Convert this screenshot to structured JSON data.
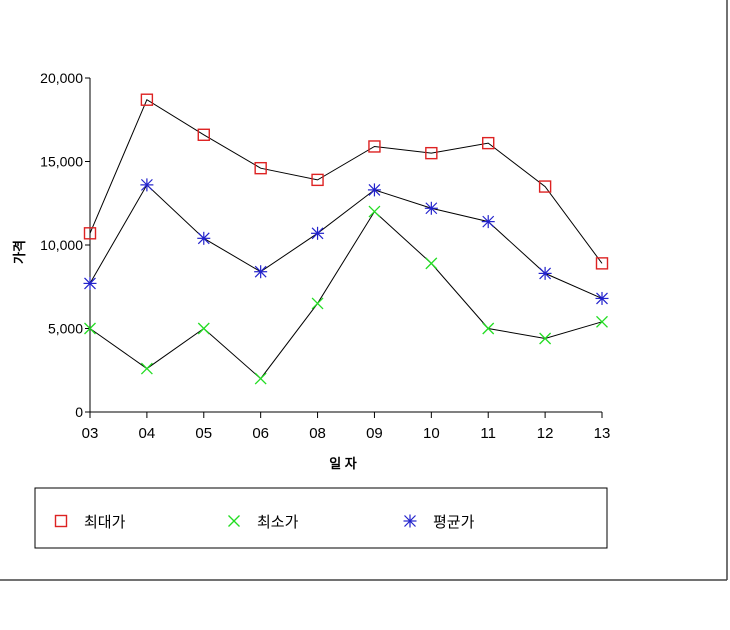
{
  "chart_data": {
    "type": "line",
    "title": "",
    "xlabel": "일 자",
    "ylabel": "가격",
    "categories": [
      "03",
      "04",
      "05",
      "06",
      "08",
      "09",
      "10",
      "11",
      "12",
      "13"
    ],
    "ylim": [
      0,
      20000
    ],
    "yticks": [
      0,
      5000,
      10000,
      15000,
      20000
    ],
    "ytick_labels": [
      "0",
      "5,000",
      "10,000",
      "15,000",
      "20,000"
    ],
    "grid": false,
    "legend_position": "bottom",
    "series": [
      {
        "name": "최대가",
        "marker": "square",
        "color": "#dd2222",
        "values": [
          10700,
          18700,
          16600,
          14600,
          13900,
          15900,
          15500,
          16100,
          13500,
          8900
        ]
      },
      {
        "name": "최소가",
        "marker": "x",
        "color": "#22dd22",
        "values": [
          5000,
          2600,
          5000,
          2000,
          6500,
          12000,
          8900,
          5000,
          4400,
          5400
        ]
      },
      {
        "name": "평균가",
        "marker": "star",
        "color": "#2222cc",
        "values": [
          7700,
          13600,
          10400,
          8400,
          10700,
          13300,
          12200,
          11400,
          8300,
          6800
        ]
      }
    ]
  }
}
